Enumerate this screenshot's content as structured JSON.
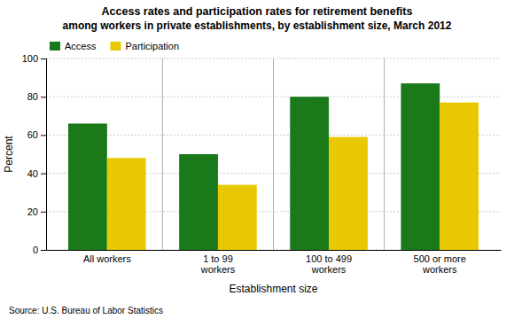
{
  "chart_data": {
    "type": "bar",
    "title": "Access rates and participation rates for retirement benefits",
    "subtitle": "among workers in private establishments, by establishment size, March 2012",
    "categories": [
      "All workers",
      "1 to 99\nworkers",
      "100 to 499\nworkers",
      "500 or more\nworkers"
    ],
    "series": [
      {
        "name": "Access",
        "color": "#1a7a1a",
        "values": [
          66,
          50,
          80,
          87
        ]
      },
      {
        "name": "Participation",
        "color": "#e8c800",
        "values": [
          48,
          34,
          59,
          77
        ]
      }
    ],
    "xlabel": "Establishment size",
    "ylabel": "Percent",
    "ylim": [
      0,
      100
    ],
    "yticks": [
      0,
      20,
      40,
      60,
      80,
      100
    ],
    "grid": true,
    "legend": "upper left",
    "source": "Source: U.S. Bureau of Labor Statistics"
  }
}
